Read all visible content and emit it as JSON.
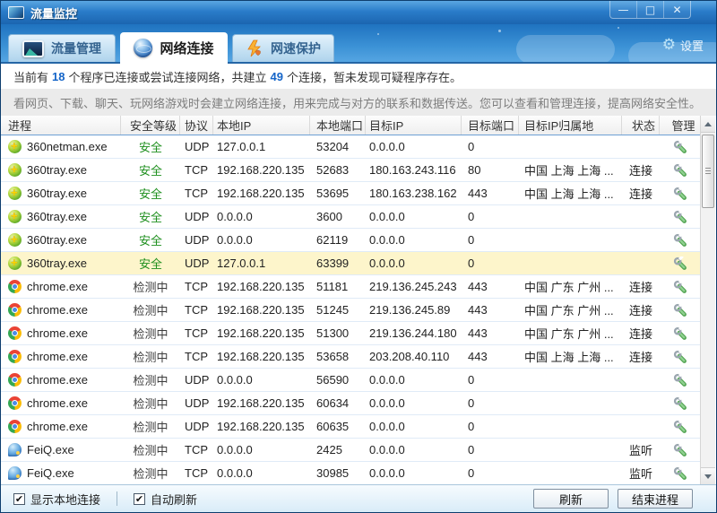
{
  "window": {
    "title": "流量监控",
    "controls": {
      "minimize": "—",
      "maximize": "□",
      "close": "✕"
    }
  },
  "tabs": [
    {
      "label": "流量管理",
      "icon": "traffic-chart-icon",
      "active": false
    },
    {
      "label": "网络连接",
      "icon": "globe-icon",
      "active": true
    },
    {
      "label": "网速保护",
      "icon": "lightning-shield-icon",
      "active": false
    }
  ],
  "settings": {
    "label": "设置",
    "icon": "⚙"
  },
  "summary": {
    "part1": "当前有",
    "program_count": "18",
    "part2": "个程序已连接或尝试连接网络，共建立",
    "connection_count": "49",
    "part3": "个连接，暂未发现可疑程序存在。"
  },
  "description": "看网页、下载、聊天、玩网络游戏时会建立网络连接，用来完成与对方的联系和数据传送。您可以查看和管理连接，提高网络安全性。",
  "table": {
    "columns": [
      {
        "key": "process",
        "label": "进程"
      },
      {
        "key": "level",
        "label": "安全等级"
      },
      {
        "key": "proto",
        "label": "协议"
      },
      {
        "key": "lip",
        "label": "本地IP"
      },
      {
        "key": "lport",
        "label": "本地端口"
      },
      {
        "key": "tip",
        "label": "目标IP"
      },
      {
        "key": "tport",
        "label": "目标端口"
      },
      {
        "key": "loc",
        "label": "目标IP归属地"
      },
      {
        "key": "status",
        "label": "状态"
      },
      {
        "key": "manage",
        "label": "管理"
      }
    ],
    "rows": [
      {
        "icon": "360-icon",
        "process": "360netman.exe",
        "level": "安全",
        "level_status": "safe",
        "proto": "UDP",
        "lip": "127.0.0.1",
        "lport": "53204",
        "tip": "0.0.0.0",
        "tport": "0",
        "loc": "",
        "status": "",
        "highlighted": false
      },
      {
        "icon": "360-icon",
        "process": "360tray.exe",
        "level": "安全",
        "level_status": "safe",
        "proto": "TCP",
        "lip": "192.168.220.135",
        "lport": "52683",
        "tip": "180.163.243.116",
        "tport": "80",
        "loc": "中国 上海 上海 ...",
        "status": "连接",
        "highlighted": false
      },
      {
        "icon": "360-icon",
        "process": "360tray.exe",
        "level": "安全",
        "level_status": "safe",
        "proto": "TCP",
        "lip": "192.168.220.135",
        "lport": "53695",
        "tip": "180.163.238.162",
        "tport": "443",
        "loc": "中国 上海 上海 ...",
        "status": "连接",
        "highlighted": false
      },
      {
        "icon": "360-icon",
        "process": "360tray.exe",
        "level": "安全",
        "level_status": "safe",
        "proto": "UDP",
        "lip": "0.0.0.0",
        "lport": "3600",
        "tip": "0.0.0.0",
        "tport": "0",
        "loc": "",
        "status": "",
        "highlighted": false
      },
      {
        "icon": "360-icon",
        "process": "360tray.exe",
        "level": "安全",
        "level_status": "safe",
        "proto": "UDP",
        "lip": "0.0.0.0",
        "lport": "62119",
        "tip": "0.0.0.0",
        "tport": "0",
        "loc": "",
        "status": "",
        "highlighted": false
      },
      {
        "icon": "360-icon",
        "process": "360tray.exe",
        "level": "安全",
        "level_status": "safe",
        "proto": "UDP",
        "lip": "127.0.0.1",
        "lport": "63399",
        "tip": "0.0.0.0",
        "tport": "0",
        "loc": "",
        "status": "",
        "highlighted": true
      },
      {
        "icon": "chrome-icon",
        "process": "chrome.exe",
        "level": "检测中",
        "level_status": "checking",
        "proto": "TCP",
        "lip": "192.168.220.135",
        "lport": "51181",
        "tip": "219.136.245.243",
        "tport": "443",
        "loc": "中国 广东 广州 ...",
        "status": "连接",
        "highlighted": false
      },
      {
        "icon": "chrome-icon",
        "process": "chrome.exe",
        "level": "检测中",
        "level_status": "checking",
        "proto": "TCP",
        "lip": "192.168.220.135",
        "lport": "51245",
        "tip": "219.136.245.89",
        "tport": "443",
        "loc": "中国 广东 广州 ...",
        "status": "连接",
        "highlighted": false
      },
      {
        "icon": "chrome-icon",
        "process": "chrome.exe",
        "level": "检测中",
        "level_status": "checking",
        "proto": "TCP",
        "lip": "192.168.220.135",
        "lport": "51300",
        "tip": "219.136.244.180",
        "tport": "443",
        "loc": "中国 广东 广州 ...",
        "status": "连接",
        "highlighted": false
      },
      {
        "icon": "chrome-icon",
        "process": "chrome.exe",
        "level": "检测中",
        "level_status": "checking",
        "proto": "TCP",
        "lip": "192.168.220.135",
        "lport": "53658",
        "tip": "203.208.40.110",
        "tport": "443",
        "loc": "中国 上海 上海 ...",
        "status": "连接",
        "highlighted": false
      },
      {
        "icon": "chrome-icon",
        "process": "chrome.exe",
        "level": "检测中",
        "level_status": "checking",
        "proto": "UDP",
        "lip": "0.0.0.0",
        "lport": "56590",
        "tip": "0.0.0.0",
        "tport": "0",
        "loc": "",
        "status": "",
        "highlighted": false
      },
      {
        "icon": "chrome-icon",
        "process": "chrome.exe",
        "level": "检测中",
        "level_status": "checking",
        "proto": "UDP",
        "lip": "192.168.220.135",
        "lport": "60634",
        "tip": "0.0.0.0",
        "tport": "0",
        "loc": "",
        "status": "",
        "highlighted": false
      },
      {
        "icon": "chrome-icon",
        "process": "chrome.exe",
        "level": "检测中",
        "level_status": "checking",
        "proto": "UDP",
        "lip": "192.168.220.135",
        "lport": "60635",
        "tip": "0.0.0.0",
        "tport": "0",
        "loc": "",
        "status": "",
        "highlighted": false
      },
      {
        "icon": "feiq-icon",
        "process": "FeiQ.exe",
        "level": "检测中",
        "level_status": "checking",
        "proto": "TCP",
        "lip": "0.0.0.0",
        "lport": "2425",
        "tip": "0.0.0.0",
        "tport": "0",
        "loc": "",
        "status": "监听",
        "highlighted": false
      },
      {
        "icon": "feiq-icon",
        "process": "FeiQ.exe",
        "level": "检测中",
        "level_status": "checking",
        "proto": "TCP",
        "lip": "0.0.0.0",
        "lport": "30985",
        "tip": "0.0.0.0",
        "tport": "0",
        "loc": "",
        "status": "监听",
        "highlighted": false
      }
    ]
  },
  "footer": {
    "show_local_label": "显示本地连接",
    "auto_refresh_label": "自动刷新",
    "show_local_checked": true,
    "auto_refresh_checked": true,
    "refresh_label": "刷新",
    "end_process_label": "结束进程",
    "check_glyph": "✔"
  },
  "colors": {
    "titlebar_blue": "#2a7cc9",
    "accent_number_blue": "#1565c8",
    "safe_green": "#1e8f1e",
    "highlight_yellow": "#fdf5cb"
  }
}
